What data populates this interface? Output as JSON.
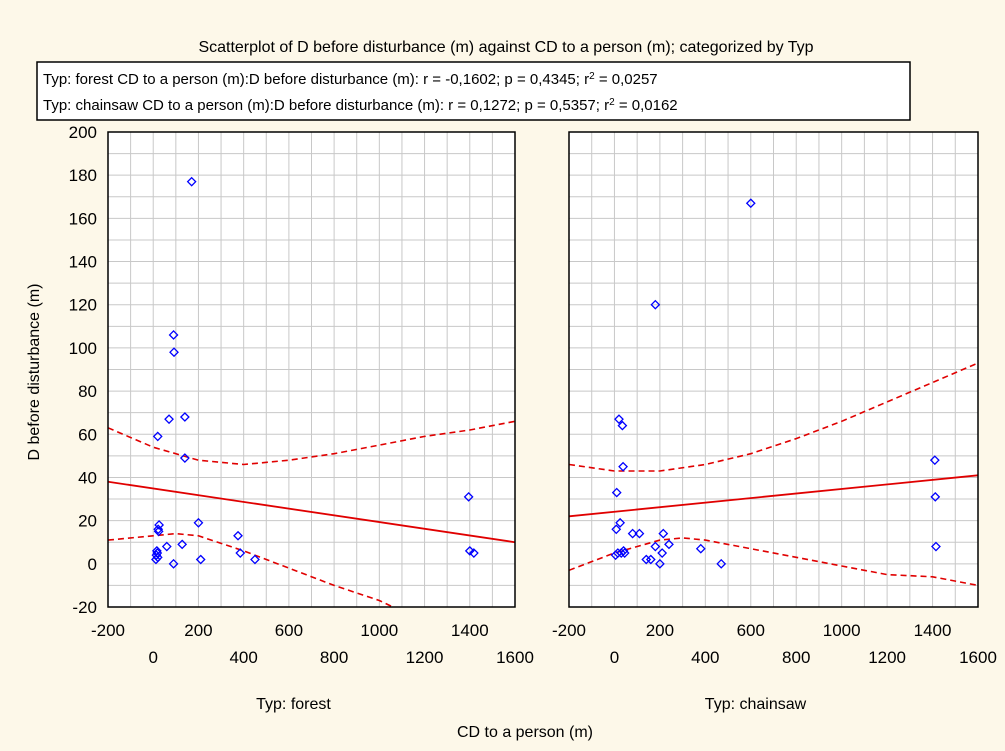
{
  "chart_data": {
    "type": "scatter",
    "title": "Scatterplot of D before disturbance (m) against CD to a person (m); categorized by Typ",
    "xlabel": "CD to a person (m)",
    "ylabel": "D before disturbance (m)",
    "ylim": [
      -20,
      200
    ],
    "y_ticks": [
      "-20",
      "0",
      "20",
      "40",
      "60",
      "80",
      "100",
      "120",
      "140",
      "160",
      "180",
      "200"
    ],
    "x_ticks_top": [
      "-200",
      "200",
      "600",
      "1000",
      "1400"
    ],
    "x_ticks_bottom": [
      "0",
      "400",
      "800",
      "1200",
      "1600"
    ],
    "xlim": [
      -200,
      1600
    ],
    "grid": true,
    "legend_position": "top",
    "legend": [
      {
        "text": "Typ: forest  CD to a person (m):D before disturbance (m):   r = -0,1602; p = 0,4345; r",
        "sup": "2",
        "tail": " = 0,0257"
      },
      {
        "text": "Typ: chainsaw  CD to a person (m):D before disturbance (m):   r =  0,1272; p = 0,5357; r",
        "sup": "2",
        "tail": " = 0,0162"
      }
    ],
    "marker_color": "#0000ff",
    "fit_color": "#e00000",
    "panels": [
      {
        "name": "Typ: forest",
        "points": [
          [
            12,
            2
          ],
          [
            14,
            4
          ],
          [
            16,
            6
          ],
          [
            18,
            5
          ],
          [
            20,
            3
          ],
          [
            22,
            16
          ],
          [
            24,
            15
          ],
          [
            26,
            18
          ],
          [
            20,
            59
          ],
          [
            60,
            8
          ],
          [
            70,
            67
          ],
          [
            90,
            0
          ],
          [
            90,
            106
          ],
          [
            92,
            98
          ],
          [
            128,
            9
          ],
          [
            140,
            49
          ],
          [
            140,
            68
          ],
          [
            170,
            177
          ],
          [
            200,
            19
          ],
          [
            210,
            2
          ],
          [
            375,
            13
          ],
          [
            385,
            5
          ],
          [
            450,
            2
          ],
          [
            1395,
            31
          ],
          [
            1400,
            6
          ],
          [
            1418,
            5
          ]
        ],
        "fit": {
          "y_at_xmin": 38,
          "y_at_xmax": 10
        },
        "ci_upper": [
          [
            -200,
            63
          ],
          [
            0,
            54
          ],
          [
            200,
            48
          ],
          [
            400,
            46
          ],
          [
            600,
            48
          ],
          [
            800,
            51
          ],
          [
            1000,
            55
          ],
          [
            1200,
            59
          ],
          [
            1400,
            62
          ],
          [
            1600,
            66
          ]
        ],
        "ci_lower": [
          [
            -200,
            11
          ],
          [
            0,
            13
          ],
          [
            100,
            14
          ],
          [
            200,
            13
          ],
          [
            400,
            6
          ],
          [
            600,
            -2
          ],
          [
            800,
            -10
          ],
          [
            1000,
            -17
          ],
          [
            1060,
            -20
          ]
        ]
      },
      {
        "name": "Typ: chainsaw",
        "points": [
          [
            5,
            4
          ],
          [
            8,
            16
          ],
          [
            10,
            33
          ],
          [
            15,
            5
          ],
          [
            20,
            67
          ],
          [
            25,
            19
          ],
          [
            30,
            5
          ],
          [
            35,
            64
          ],
          [
            38,
            45
          ],
          [
            40,
            6
          ],
          [
            45,
            5
          ],
          [
            80,
            14
          ],
          [
            110,
            14
          ],
          [
            140,
            2
          ],
          [
            160,
            2
          ],
          [
            180,
            120
          ],
          [
            180,
            8
          ],
          [
            200,
            0
          ],
          [
            210,
            5
          ],
          [
            215,
            14
          ],
          [
            240,
            9
          ],
          [
            380,
            7
          ],
          [
            470,
            0
          ],
          [
            600,
            167
          ],
          [
            1410,
            48
          ],
          [
            1412,
            31
          ],
          [
            1415,
            8
          ]
        ],
        "fit": {
          "y_at_xmin": 22,
          "y_at_xmax": 41
        },
        "ci_upper": [
          [
            -200,
            46
          ],
          [
            0,
            43
          ],
          [
            200,
            43
          ],
          [
            400,
            46
          ],
          [
            600,
            51
          ],
          [
            800,
            58
          ],
          [
            1000,
            66
          ],
          [
            1200,
            75
          ],
          [
            1400,
            84
          ],
          [
            1600,
            93
          ]
        ],
        "ci_lower": [
          [
            -200,
            -3
          ],
          [
            0,
            5
          ],
          [
            200,
            11
          ],
          [
            300,
            12
          ],
          [
            400,
            11
          ],
          [
            600,
            7
          ],
          [
            800,
            3
          ],
          [
            1000,
            -1
          ],
          [
            1200,
            -5
          ],
          [
            1400,
            -6
          ],
          [
            1600,
            -10
          ]
        ]
      }
    ]
  }
}
